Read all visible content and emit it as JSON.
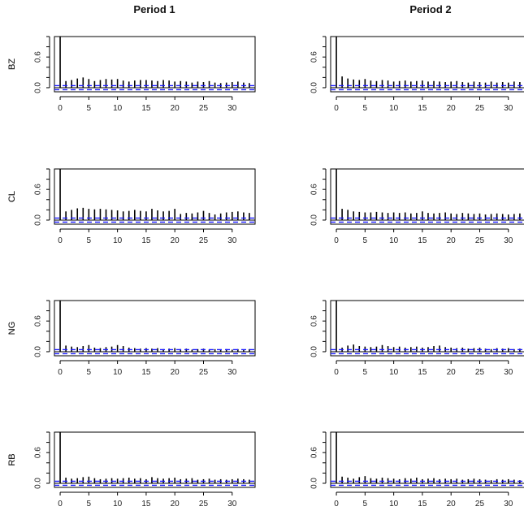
{
  "figure": {
    "columns": [
      "Period 1",
      "Period 2"
    ],
    "rows": [
      "BZ",
      "CL",
      "NG",
      "RB"
    ]
  },
  "chart_data": [
    {
      "type": "bar",
      "panel": "BZ / Period 1",
      "x_ticks": [
        0,
        5,
        10,
        15,
        20,
        25,
        30
      ],
      "y_ticks": [
        "0.0",
        "0.6"
      ],
      "xlim": [
        -1,
        34
      ],
      "ylim": [
        -0.08,
        1.0
      ],
      "ci": 0.04,
      "values": [
        1.0,
        0.13,
        0.15,
        0.18,
        0.2,
        0.17,
        0.13,
        0.15,
        0.17,
        0.16,
        0.17,
        0.14,
        0.12,
        0.14,
        0.15,
        0.15,
        0.14,
        0.13,
        0.15,
        0.14,
        0.12,
        0.13,
        0.12,
        0.1,
        0.12,
        0.11,
        0.13,
        0.1,
        0.09,
        0.1,
        0.11,
        0.12,
        0.1,
        0.09
      ]
    },
    {
      "type": "bar",
      "panel": "BZ / Period 2",
      "x_ticks": [
        0,
        5,
        10,
        15,
        20,
        25,
        30
      ],
      "y_ticks": [
        "0.0",
        "0.6"
      ],
      "xlim": [
        -1,
        34
      ],
      "ylim": [
        -0.08,
        1.0
      ],
      "ci": 0.04,
      "values": [
        1.0,
        0.22,
        0.18,
        0.16,
        0.15,
        0.17,
        0.14,
        0.13,
        0.15,
        0.14,
        0.12,
        0.13,
        0.14,
        0.12,
        0.13,
        0.14,
        0.12,
        0.13,
        0.12,
        0.11,
        0.12,
        0.13,
        0.11,
        0.1,
        0.12,
        0.11,
        0.1,
        0.12,
        0.1,
        0.11,
        0.1,
        0.12,
        0.11,
        0.12
      ]
    },
    {
      "type": "bar",
      "panel": "CL / Period 1",
      "x_ticks": [
        0,
        5,
        10,
        15,
        20,
        25,
        30
      ],
      "y_ticks": [
        "0.0",
        "0.6"
      ],
      "xlim": [
        -1,
        34
      ],
      "ylim": [
        -0.08,
        1.0
      ],
      "ci": 0.04,
      "values": [
        1.0,
        0.17,
        0.2,
        0.23,
        0.24,
        0.22,
        0.21,
        0.22,
        0.21,
        0.2,
        0.19,
        0.17,
        0.18,
        0.2,
        0.18,
        0.17,
        0.22,
        0.19,
        0.17,
        0.18,
        0.22,
        0.12,
        0.14,
        0.13,
        0.15,
        0.18,
        0.14,
        0.11,
        0.13,
        0.15,
        0.16,
        0.17,
        0.15,
        0.14
      ]
    },
    {
      "type": "bar",
      "panel": "CL / Period 2",
      "x_ticks": [
        0,
        5,
        10,
        15,
        20,
        25,
        30
      ],
      "y_ticks": [
        "0.0",
        "0.6"
      ],
      "xlim": [
        -1,
        34
      ],
      "ylim": [
        -0.08,
        1.0
      ],
      "ci": 0.04,
      "values": [
        1.0,
        0.22,
        0.2,
        0.17,
        0.16,
        0.15,
        0.15,
        0.16,
        0.15,
        0.14,
        0.15,
        0.14,
        0.15,
        0.13,
        0.14,
        0.17,
        0.14,
        0.13,
        0.14,
        0.15,
        0.13,
        0.12,
        0.14,
        0.13,
        0.12,
        0.13,
        0.11,
        0.12,
        0.13,
        0.12,
        0.11,
        0.12,
        0.13,
        0.12
      ]
    },
    {
      "type": "bar",
      "panel": "NG / Period 1",
      "x_ticks": [
        0,
        5,
        10,
        15,
        20,
        25,
        30
      ],
      "y_ticks": [
        "0.0",
        "0.6"
      ],
      "xlim": [
        -1,
        34
      ],
      "ylim": [
        -0.08,
        1.0
      ],
      "ci": 0.04,
      "values": [
        1.0,
        0.12,
        0.1,
        0.09,
        0.11,
        0.13,
        0.08,
        0.07,
        0.09,
        0.1,
        0.13,
        0.11,
        0.08,
        0.07,
        0.06,
        0.07,
        0.06,
        0.07,
        0.05,
        0.06,
        0.07,
        0.05,
        0.06,
        0.04,
        0.05,
        0.06,
        0.04,
        0.05,
        0.04,
        0.05,
        0.04,
        0.05,
        0.04,
        0.05
      ]
    },
    {
      "type": "bar",
      "panel": "NG / Period 2",
      "x_ticks": [
        0,
        5,
        10,
        15,
        20,
        25,
        30
      ],
      "y_ticks": [
        "0.0",
        "0.6"
      ],
      "xlim": [
        -1,
        34
      ],
      "ylim": [
        -0.08,
        1.0
      ],
      "ci": 0.04,
      "values": [
        1.0,
        0.08,
        0.12,
        0.14,
        0.11,
        0.1,
        0.09,
        0.1,
        0.13,
        0.11,
        0.09,
        0.1,
        0.08,
        0.09,
        0.1,
        0.08,
        0.09,
        0.11,
        0.12,
        0.09,
        0.08,
        0.07,
        0.08,
        0.06,
        0.07,
        0.08,
        0.06,
        0.05,
        0.07,
        0.06,
        0.07,
        0.05,
        0.06,
        0.05
      ]
    },
    {
      "type": "bar",
      "panel": "RB / Period 1",
      "x_ticks": [
        0,
        5,
        10,
        15,
        20,
        25,
        30
      ],
      "y_ticks": [
        "0.0",
        "0.6"
      ],
      "xlim": [
        -1,
        34
      ],
      "ylim": [
        -0.08,
        1.0
      ],
      "ci": 0.04,
      "values": [
        1.0,
        0.11,
        0.09,
        0.1,
        0.12,
        0.13,
        0.1,
        0.08,
        0.09,
        0.1,
        0.09,
        0.1,
        0.11,
        0.09,
        0.1,
        0.08,
        0.12,
        0.1,
        0.09,
        0.1,
        0.11,
        0.08,
        0.09,
        0.1,
        0.07,
        0.08,
        0.09,
        0.07,
        0.08,
        0.07,
        0.08,
        0.09,
        0.08,
        0.07
      ]
    },
    {
      "type": "bar",
      "panel": "RB / Period 2",
      "x_ticks": [
        0,
        5,
        10,
        15,
        20,
        25,
        30
      ],
      "y_ticks": [
        "0.0",
        "0.6"
      ],
      "xlim": [
        -1,
        34
      ],
      "ylim": [
        -0.08,
        1.0
      ],
      "ci": 0.04,
      "values": [
        1.0,
        0.13,
        0.11,
        0.09,
        0.12,
        0.14,
        0.1,
        0.09,
        0.11,
        0.1,
        0.09,
        0.08,
        0.1,
        0.09,
        0.11,
        0.08,
        0.09,
        0.1,
        0.08,
        0.09,
        0.08,
        0.09,
        0.07,
        0.08,
        0.09,
        0.08,
        0.07,
        0.06,
        0.08,
        0.07,
        0.08,
        0.07,
        0.06,
        0.07
      ]
    }
  ]
}
